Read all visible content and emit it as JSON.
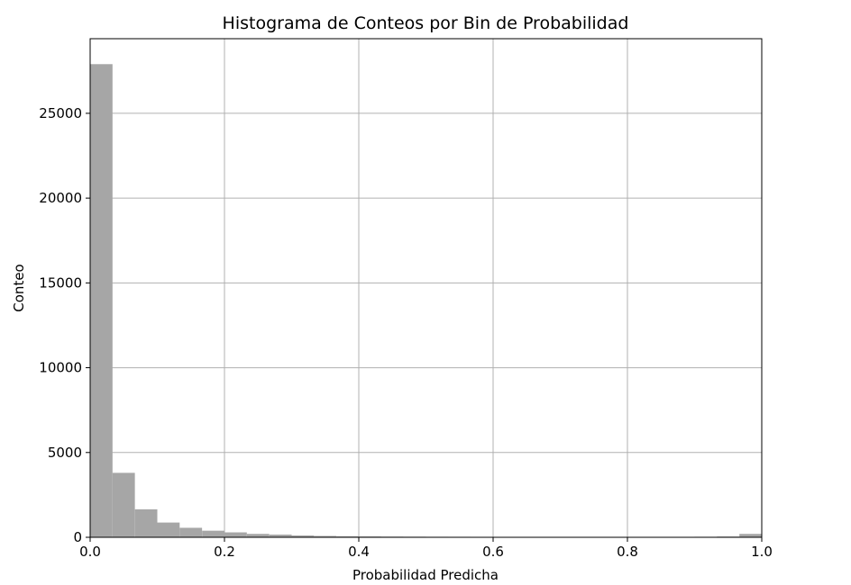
{
  "chart_data": {
    "type": "bar",
    "title": "Histograma de Conteos por Bin de Probabilidad",
    "xlabel": "Probabilidad Predicha",
    "ylabel": "Conteo",
    "xlim": [
      0.0,
      1.0
    ],
    "ylim": [
      0,
      29400
    ],
    "x_ticks": [
      "0.0",
      "0.2",
      "0.4",
      "0.6",
      "0.8",
      "1.0"
    ],
    "y_ticks": [
      "0",
      "5000",
      "10000",
      "15000",
      "20000",
      "25000"
    ],
    "grid": true,
    "bar_color": "#a6a6a6",
    "grid_color": "#b0b0b0",
    "bin_width": 0.0333,
    "bins": [
      {
        "start": 0.0,
        "count": 27900
      },
      {
        "start": 0.0333,
        "count": 3800
      },
      {
        "start": 0.0667,
        "count": 1650
      },
      {
        "start": 0.1,
        "count": 870
      },
      {
        "start": 0.1333,
        "count": 560
      },
      {
        "start": 0.1667,
        "count": 390
      },
      {
        "start": 0.2,
        "count": 290
      },
      {
        "start": 0.2333,
        "count": 200
      },
      {
        "start": 0.2667,
        "count": 160
      },
      {
        "start": 0.3,
        "count": 110
      },
      {
        "start": 0.3333,
        "count": 80
      },
      {
        "start": 0.3667,
        "count": 60
      },
      {
        "start": 0.4,
        "count": 50
      },
      {
        "start": 0.4333,
        "count": 40
      },
      {
        "start": 0.4667,
        "count": 35
      },
      {
        "start": 0.5,
        "count": 30
      },
      {
        "start": 0.5333,
        "count": 28
      },
      {
        "start": 0.5667,
        "count": 25
      },
      {
        "start": 0.6,
        "count": 25
      },
      {
        "start": 0.6333,
        "count": 22
      },
      {
        "start": 0.6667,
        "count": 22
      },
      {
        "start": 0.7,
        "count": 20
      },
      {
        "start": 0.7333,
        "count": 20
      },
      {
        "start": 0.7667,
        "count": 18
      },
      {
        "start": 0.8,
        "count": 18
      },
      {
        "start": 0.8333,
        "count": 20
      },
      {
        "start": 0.8667,
        "count": 25
      },
      {
        "start": 0.9,
        "count": 30
      },
      {
        "start": 0.9333,
        "count": 45
      },
      {
        "start": 0.9667,
        "count": 200
      }
    ]
  }
}
